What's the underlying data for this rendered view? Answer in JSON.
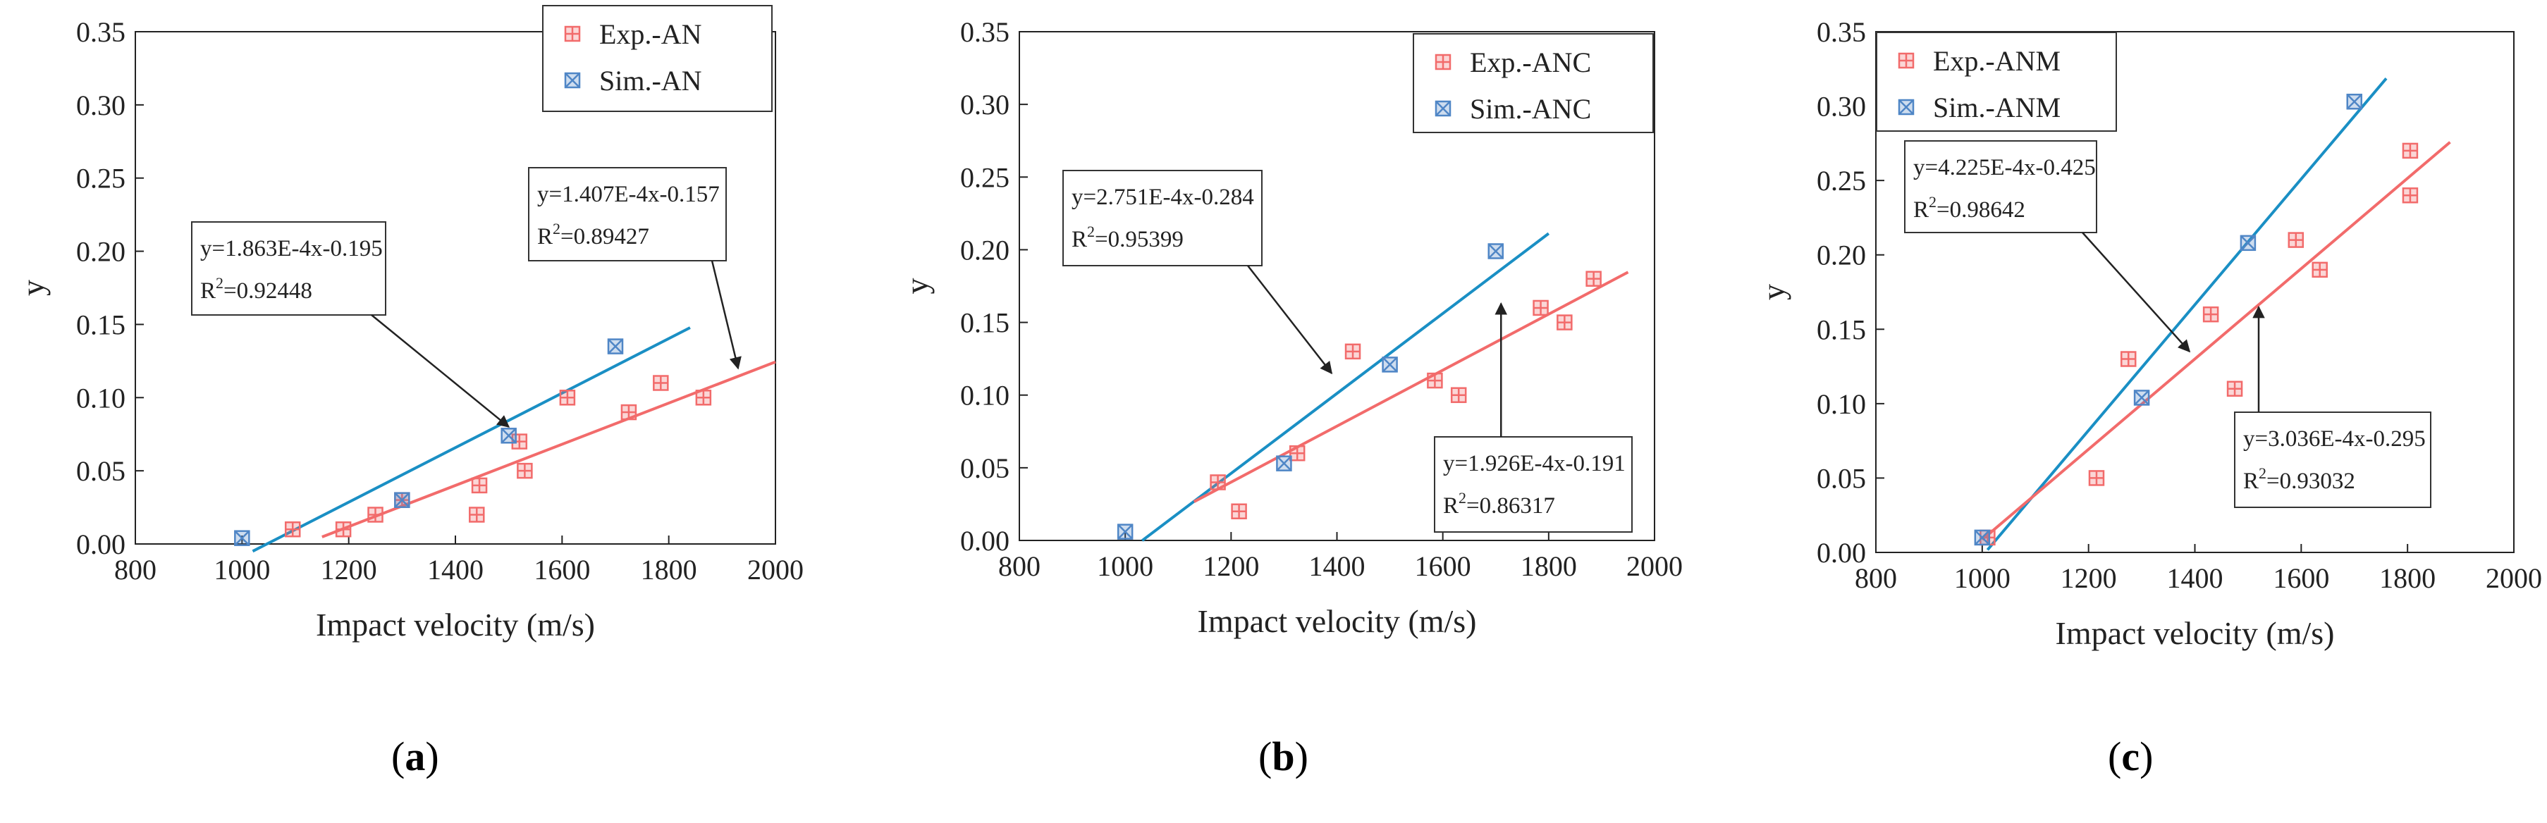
{
  "chart_data": [
    {
      "type": "scatter",
      "panel_label": "a",
      "xlabel": "Impact velocity (m/s)",
      "ylabel": "y",
      "xlim": [
        800,
        2000
      ],
      "ylim": [
        0,
        0.35
      ],
      "xticks": [
        "800",
        "1000",
        "1200",
        "1400",
        "1600",
        "1800",
        "2000"
      ],
      "yticks": [
        "0.00",
        "0.05",
        "0.10",
        "0.15",
        "0.20",
        "0.25",
        "0.30",
        "0.35"
      ],
      "legend_position": "top-right",
      "series": [
        {
          "name": "Exp.-AN",
          "color": "#f26b6b",
          "marker": "boxed-plus",
          "x": [
            1095,
            1190,
            1250,
            1300,
            1440,
            1445,
            1520,
            1530,
            1610,
            1725,
            1785,
            1865
          ],
          "y": [
            0.01,
            0.01,
            0.02,
            0.03,
            0.02,
            0.04,
            0.07,
            0.05,
            0.1,
            0.09,
            0.11,
            0.1
          ]
        },
        {
          "name": "Sim.-AN",
          "color": "#4f86c6",
          "marker": "boxed-x",
          "x": [
            1000,
            1300,
            1500,
            1700
          ],
          "y": [
            0.004,
            0.03,
            0.074,
            0.135
          ]
        }
      ],
      "fits": [
        {
          "series": "Sim.-AN",
          "color": "#1a8fc4",
          "x_range": [
            1020,
            1840
          ],
          "slope": 0.0001863,
          "intercept": -0.195
        },
        {
          "series": "Exp.-AN",
          "color": "#f26b6b",
          "x_range": [
            1150,
            2000
          ],
          "slope": 0.0001407,
          "intercept": -0.157
        }
      ],
      "annotations": [
        {
          "equation": "y=1.863E-4x-0.195",
          "r2_value": "=0.92448",
          "arrow_to": [
            1500,
            0.08
          ]
        },
        {
          "equation": "y=1.407E-4x-0.157",
          "r2_value": "=0.89427",
          "arrow_to": [
            1930,
            0.12
          ]
        }
      ]
    },
    {
      "type": "scatter",
      "panel_label": "b",
      "xlabel": "Impact velocity (m/s)",
      "ylabel": "y",
      "xlim": [
        800,
        2000
      ],
      "ylim": [
        0,
        0.35
      ],
      "xticks": [
        "800",
        "1000",
        "1200",
        "1400",
        "1600",
        "1800",
        "2000"
      ],
      "yticks": [
        "0.00",
        "0.05",
        "0.10",
        "0.15",
        "0.20",
        "0.25",
        "0.30",
        "0.35"
      ],
      "legend_position": "top-right",
      "series": [
        {
          "name": "Exp.-ANC",
          "color": "#f26b6b",
          "marker": "boxed-plus",
          "x": [
            1175,
            1215,
            1325,
            1430,
            1585,
            1630,
            1785,
            1830,
            1885
          ],
          "y": [
            0.04,
            0.02,
            0.06,
            0.13,
            0.11,
            0.1,
            0.16,
            0.15,
            0.18
          ]
        },
        {
          "name": "Sim.-ANC",
          "color": "#4f86c6",
          "marker": "boxed-x",
          "x": [
            1000,
            1300,
            1500,
            1700
          ],
          "y": [
            0.006,
            0.053,
            0.121,
            0.199
          ]
        }
      ],
      "fits": [
        {
          "series": "Sim.-ANC",
          "color": "#1a8fc4",
          "x_range": [
            1032,
            1800
          ],
          "slope": 0.0002751,
          "intercept": -0.284
        },
        {
          "series": "Exp.-ANC",
          "color": "#f26b6b",
          "x_range": [
            1130,
            1950
          ],
          "slope": 0.0001926,
          "intercept": -0.191
        }
      ],
      "annotations": [
        {
          "equation": "y=2.751E-4x-0.284",
          "r2_value": "=0.95399",
          "arrow_to": [
            1390,
            0.115
          ]
        },
        {
          "equation": "y=1.926E-4x-0.191",
          "r2_value": "=0.86317",
          "arrow_to": [
            1710,
            0.163
          ]
        }
      ]
    },
    {
      "type": "scatter",
      "panel_label": "c",
      "xlabel": "Impact velocity (m/s)",
      "ylabel": "y",
      "xlim": [
        800,
        2000
      ],
      "ylim": [
        0,
        0.35
      ],
      "xticks": [
        "800",
        "1000",
        "1200",
        "1400",
        "1600",
        "1800",
        "2000"
      ],
      "yticks": [
        "0.00",
        "0.05",
        "0.10",
        "0.15",
        "0.20",
        "0.25",
        "0.30",
        "0.35"
      ],
      "legend_position": "top-left",
      "series": [
        {
          "name": "Exp.-ANM",
          "color": "#f26b6b",
          "marker": "boxed-plus",
          "x": [
            1010,
            1215,
            1275,
            1430,
            1475,
            1590,
            1635,
            1805,
            1805
          ],
          "y": [
            0.01,
            0.05,
            0.13,
            0.16,
            0.11,
            0.21,
            0.19,
            0.27,
            0.24
          ]
        },
        {
          "name": "Sim.-ANM",
          "color": "#4f86c6",
          "marker": "boxed-x",
          "x": [
            1000,
            1300,
            1500,
            1700
          ],
          "y": [
            0.01,
            0.104,
            0.208,
            0.303
          ]
        }
      ],
      "fits": [
        {
          "series": "Sim.-ANM",
          "color": "#1a8fc4",
          "x_range": [
            1010,
            1760
          ],
          "slope": 0.0004225,
          "intercept": -0.425
        },
        {
          "series": "Exp.-ANM",
          "color": "#f26b6b",
          "x_range": [
            1000,
            1880
          ],
          "slope": 0.0003036,
          "intercept": -0.295
        }
      ],
      "annotations": [
        {
          "equation": "y=4.225E-4x-0.425",
          "r2_value": "=0.98642",
          "arrow_to": [
            1390,
            0.135
          ]
        },
        {
          "equation": "y=3.036E-4x-0.295",
          "r2_value": "=0.93032",
          "arrow_to": [
            1520,
            0.165
          ]
        }
      ]
    }
  ],
  "captions": {
    "a": "a",
    "b": "b",
    "c": "c"
  }
}
